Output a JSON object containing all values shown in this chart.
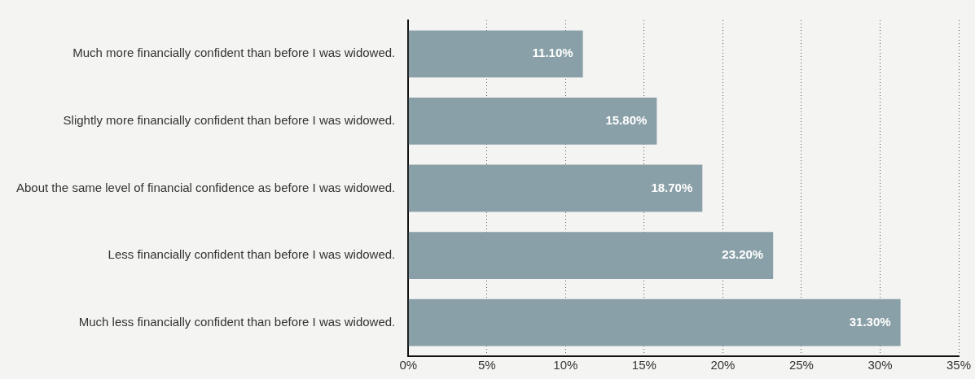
{
  "chart_data": {
    "type": "bar",
    "orientation": "horizontal",
    "categories": [
      "Much more financially confident than before I was widowed.",
      "Slightly more financially confident than before I was widowed.",
      "About the same level of financial confidence as before I was widowed.",
      "Less financially confident than before I was widowed.",
      "Much less financially confident than before I was widowed."
    ],
    "values": [
      11.1,
      15.8,
      18.7,
      23.2,
      31.3
    ],
    "value_labels": [
      "11.10%",
      "15.80%",
      "18.70%",
      "23.20%",
      "31.30%"
    ],
    "color": "#8aa0a8",
    "xlim": [
      0,
      35
    ],
    "xticks": [
      {
        "value": 0,
        "label": "0%"
      },
      {
        "value": 5,
        "label": "5%"
      },
      {
        "value": 10,
        "label": "10%"
      },
      {
        "value": 15,
        "label": "15%"
      },
      {
        "value": 20,
        "label": "20%"
      },
      {
        "value": 25,
        "label": "25%"
      },
      {
        "value": 30,
        "label": "30%"
      },
      {
        "value": 35,
        "label": "35%"
      }
    ],
    "grid": "x"
  }
}
